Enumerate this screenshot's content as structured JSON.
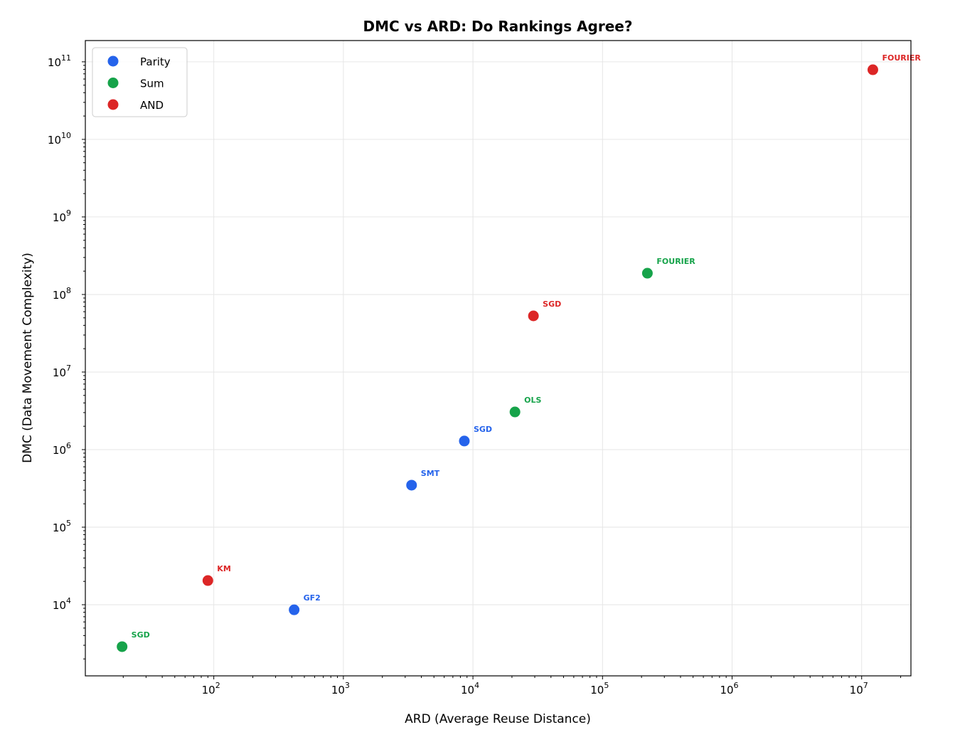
{
  "chart_data": {
    "type": "scatter",
    "title": "DMC vs ARD: Do Rankings Agree?",
    "xlabel": "ARD (Average Reuse Distance)",
    "ylabel": "DMC (Data Movement Complexity)",
    "xscale": "log",
    "yscale": "log",
    "xlim": [
      10.2,
      24000000
    ],
    "ylim": [
      1210,
      188000000000
    ],
    "x_ticks": [
      100,
      1000,
      10000,
      100000,
      1000000,
      10000000
    ],
    "y_ticks": [
      10000,
      100000,
      1000000,
      10000000,
      100000000,
      1000000000,
      10000000000,
      100000000000
    ],
    "grid": true,
    "legend_position": "top-left",
    "series": [
      {
        "name": "Parity",
        "color": "#2563eb",
        "points": [
          {
            "label": "GF2",
            "x": 417,
            "y": 8600
          },
          {
            "label": "SMT",
            "x": 3360,
            "y": 348000
          },
          {
            "label": "SGD",
            "x": 8580,
            "y": 1290000
          }
        ]
      },
      {
        "name": "Sum",
        "color": "#16a34a",
        "points": [
          {
            "label": "SGD",
            "x": 19.6,
            "y": 2880
          },
          {
            "label": "OLS",
            "x": 21100,
            "y": 3060000
          },
          {
            "label": "FOURIER",
            "x": 222000,
            "y": 188000000
          }
        ]
      },
      {
        "name": "AND",
        "color": "#dc2626",
        "points": [
          {
            "label": "KM",
            "x": 90,
            "y": 20500
          },
          {
            "label": "SGD",
            "x": 29300,
            "y": 53000000
          },
          {
            "label": "FOURIER",
            "x": 12200000,
            "y": 79000000000
          }
        ]
      }
    ]
  }
}
